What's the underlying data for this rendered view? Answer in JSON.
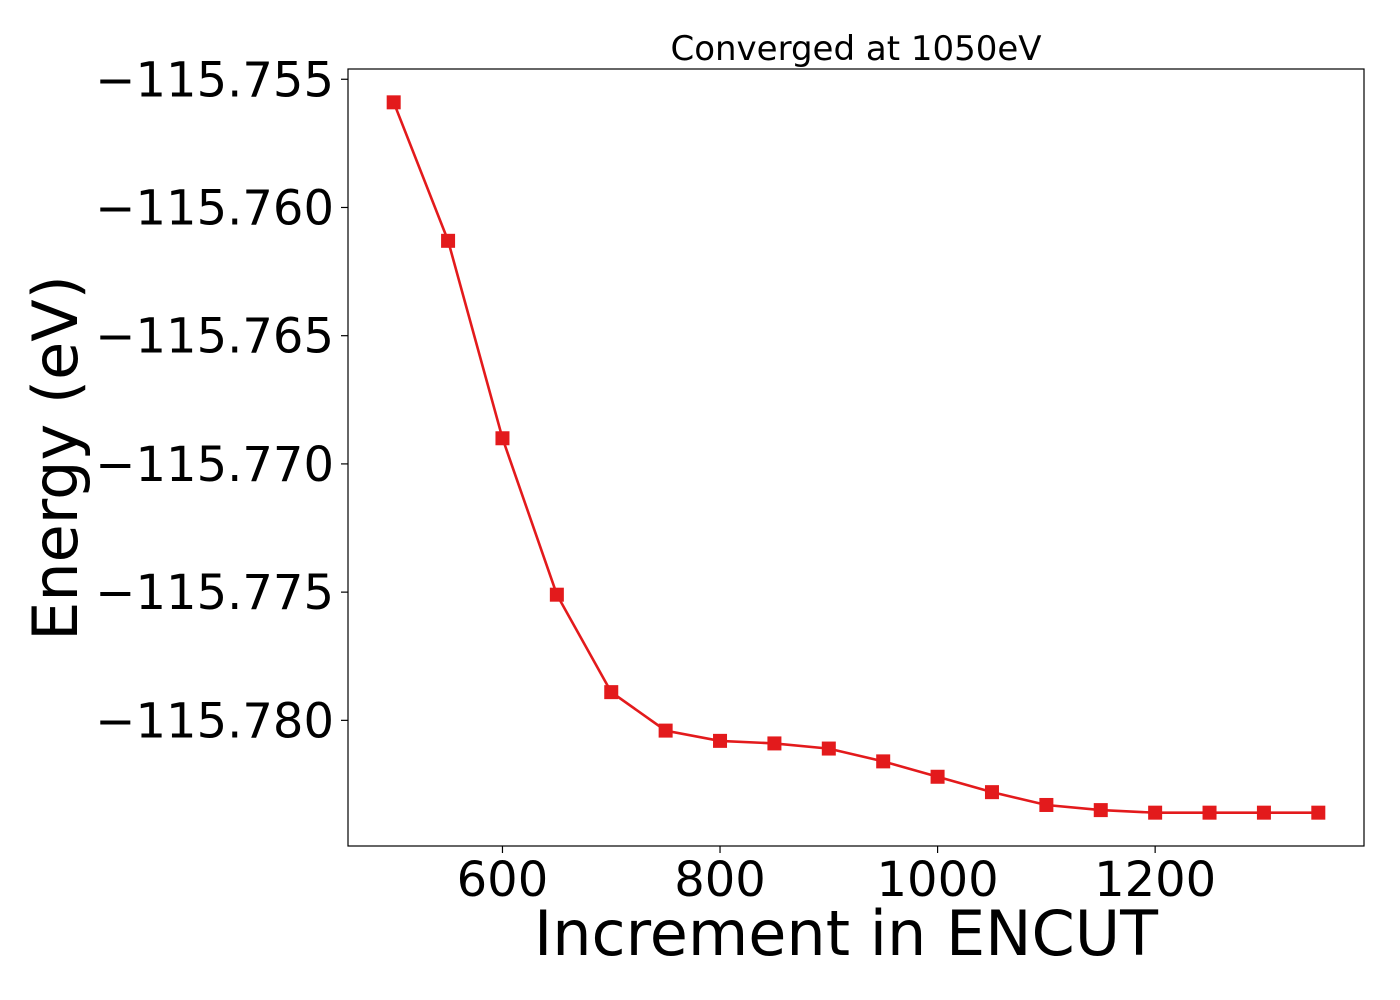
{
  "chart_data": {
    "type": "line",
    "title": "Converged at 1050eV",
    "xlabel": "Increment in ENCUT",
    "ylabel": "Energy (eV)",
    "xlim": [
      458,
      1392
    ],
    "ylim": [
      -115.7849,
      -115.7546
    ],
    "x_ticks": [
      600,
      800,
      1000,
      1200
    ],
    "y_ticks": [
      -115.755,
      -115.76,
      -115.765,
      -115.77,
      -115.775,
      -115.78
    ],
    "y_tick_labels": [
      "−115.755",
      "−115.760",
      "−115.765",
      "−115.770",
      "−115.775",
      "−115.780"
    ],
    "grid": false,
    "legend": "none",
    "series": [
      {
        "color": "#e31a1c",
        "marker": "square",
        "x": [
          500,
          550,
          600,
          650,
          700,
          750,
          800,
          850,
          900,
          950,
          1000,
          1050,
          1100,
          1150,
          1200,
          1250,
          1300,
          1350
        ],
        "y": [
          -115.7559,
          -115.7613,
          -115.769,
          -115.7751,
          -115.7789,
          -115.7804,
          -115.7808,
          -115.7809,
          -115.7811,
          -115.7816,
          -115.7822,
          -115.7828,
          -115.7833,
          -115.7835,
          -115.7836,
          -115.7836,
          -115.7836,
          -115.7836
        ]
      }
    ]
  }
}
